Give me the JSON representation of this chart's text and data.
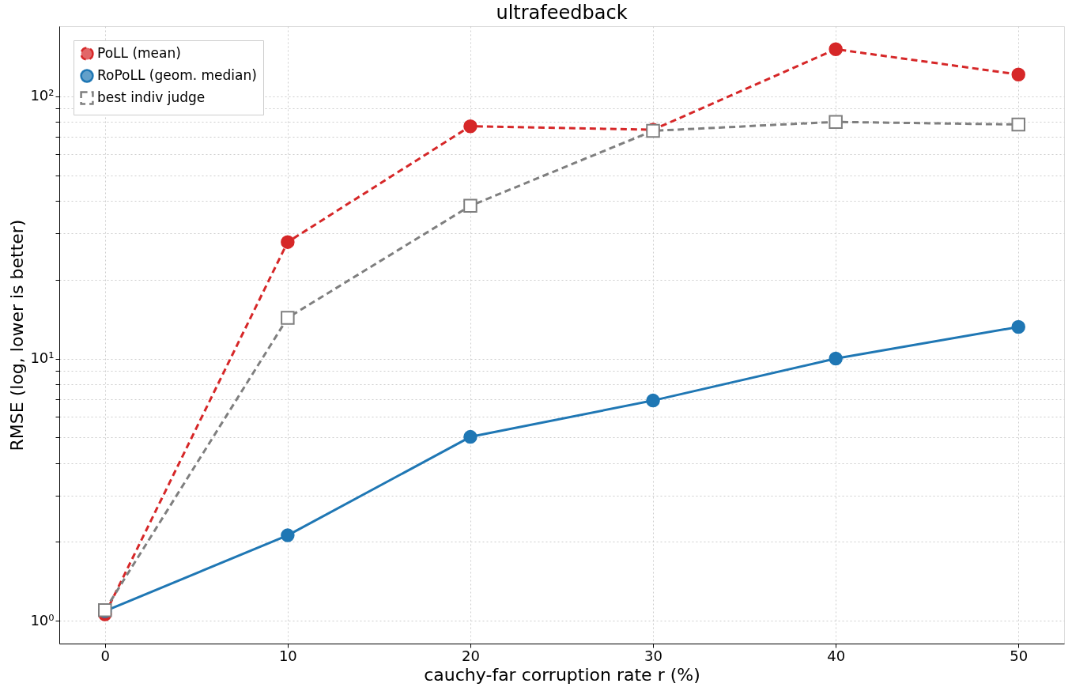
{
  "chart_data": {
    "type": "line",
    "title": "ultrafeedback",
    "xlabel": "cauchy-far corruption rate r (%)",
    "ylabel": "RMSE (log, lower is better)",
    "x": [
      0,
      10,
      20,
      30,
      40,
      50
    ],
    "series": [
      {
        "name": "PoLL (mean)",
        "color": "#d62728",
        "values": [
          1.06,
          27.8,
          76.8,
          74.5,
          151,
          121
        ],
        "line_style": "dashed",
        "marker": "circle"
      },
      {
        "name": "RoPoLL (geom. median)",
        "color": "#1f77b4",
        "values": [
          1.09,
          2.12,
          5.03,
          6.92,
          10.0,
          13.2
        ],
        "line_style": "solid",
        "marker": "circle"
      },
      {
        "name": "best indiv judge",
        "color": "#7f7f7f",
        "values": [
          1.1,
          14.3,
          38.2,
          73.8,
          79.8,
          78
        ],
        "line_style": "dashed",
        "marker": "square"
      }
    ],
    "xlim": [
      -2.5,
      52.5
    ],
    "xticks": [
      0,
      10,
      20,
      30,
      40,
      50
    ],
    "ylim": [
      0.82,
      185
    ],
    "log": "y",
    "yticks": [
      {
        "value": 1,
        "label": "10⁰"
      },
      {
        "value": 2,
        "label": null
      },
      {
        "value": 3,
        "label": null
      },
      {
        "value": 4,
        "label": null
      },
      {
        "value": 5,
        "label": null
      },
      {
        "value": 6,
        "label": null
      },
      {
        "value": 7,
        "label": null
      },
      {
        "value": 8,
        "label": null
      },
      {
        "value": 9,
        "label": null
      },
      {
        "value": 10,
        "label": "10¹"
      },
      {
        "value": 20,
        "label": null
      },
      {
        "value": 30,
        "label": null
      },
      {
        "value": 40,
        "label": null
      },
      {
        "value": 50,
        "label": null
      },
      {
        "value": 60,
        "label": null
      },
      {
        "value": 70,
        "label": null
      },
      {
        "value": 80,
        "label": null
      },
      {
        "value": 90,
        "label": null
      },
      {
        "value": 100,
        "label": "10²"
      }
    ],
    "grid": true,
    "legend": "top left"
  }
}
